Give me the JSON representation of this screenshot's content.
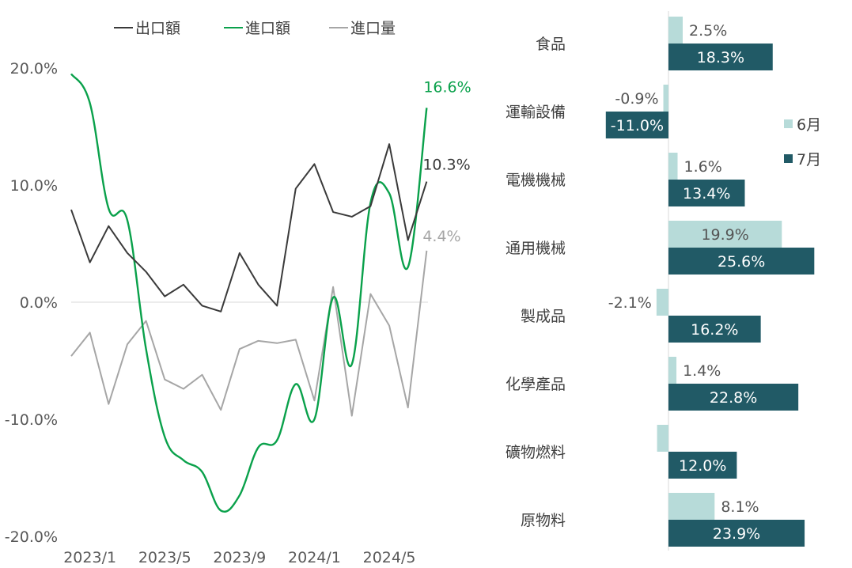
{
  "colors": {
    "export": "#3a3a3a",
    "import": "#0aa14b",
    "import_volume": "#a6a6a6",
    "june": "#b7dbd9",
    "july": "#215a66",
    "axis_text": "#595959",
    "zero_line": "#d9d9d9"
  },
  "chart_data": [
    {
      "type": "line",
      "title": "",
      "xlabel": "",
      "ylabel": "",
      "ylim": [
        -20,
        20
      ],
      "yticks": [
        20,
        10,
        0,
        -10,
        -20
      ],
      "ytick_labels": [
        "20.0%",
        "10.0%",
        "0.0%",
        "-10.0%",
        "-20.0%"
      ],
      "x_tick_labels": [
        "2023/1",
        "2023/5",
        "2023/9",
        "2024/1",
        "2024/5"
      ],
      "x": [
        "2022/12",
        "2023/1",
        "2023/2",
        "2023/3",
        "2023/4",
        "2023/5",
        "2023/6",
        "2023/7",
        "2023/8",
        "2023/9",
        "2023/10",
        "2023/11",
        "2023/12",
        "2024/1",
        "2024/2",
        "2024/3",
        "2024/4",
        "2024/5",
        "2024/6",
        "2024/7"
      ],
      "legend_position": "top",
      "grid": false,
      "series": [
        {
          "name": "出口額",
          "color_key": "export",
          "smooth": false,
          "end_label": "10.3%",
          "values": [
            7.9,
            3.4,
            6.5,
            4.2,
            2.6,
            0.5,
            1.5,
            -0.3,
            -0.8,
            4.2,
            1.5,
            -0.3,
            9.7,
            11.8,
            7.7,
            7.3,
            8.2,
            13.5,
            5.3,
            10.3
          ]
        },
        {
          "name": "進口額",
          "color_key": "import",
          "smooth": true,
          "end_label": "16.6%",
          "values": [
            19.5,
            17.0,
            8.0,
            7.0,
            -4.0,
            -11.5,
            -13.5,
            -14.5,
            -17.8,
            -16.5,
            -12.4,
            -11.8,
            -7.0,
            -10.0,
            0.4,
            -5.3,
            8.5,
            9.3,
            3.0,
            16.6
          ]
        },
        {
          "name": "進口量",
          "color_key": "import_volume",
          "smooth": false,
          "end_label": "4.4%",
          "values": [
            -4.6,
            -2.6,
            -8.7,
            -3.6,
            -1.6,
            -6.6,
            -7.4,
            -6.2,
            -9.2,
            -4.0,
            -3.3,
            -3.5,
            -3.2,
            -8.4,
            1.3,
            -9.7,
            0.7,
            -2.0,
            -9.0,
            4.4
          ]
        }
      ]
    },
    {
      "type": "bar",
      "orientation": "horizontal",
      "title": "",
      "categories": [
        "食品",
        "運輸設備",
        "電機機械",
        "通用機械",
        "製成品",
        "化學產品",
        "礦物燃料",
        "原物料"
      ],
      "legend_position": "right",
      "grid": false,
      "series": [
        {
          "name": "6月",
          "color_key": "june",
          "values": [
            2.5,
            -0.9,
            1.6,
            19.9,
            -2.1,
            1.4,
            -2.0,
            8.1
          ],
          "labels": [
            "2.5%",
            "-0.9%",
            "1.6%",
            "19.9%",
            "-2.1%",
            "1.4%",
            "",
            "8.1%"
          ]
        },
        {
          "name": "7月",
          "color_key": "july",
          "values": [
            18.3,
            -11.0,
            13.4,
            25.6,
            16.2,
            22.8,
            12.0,
            23.9
          ],
          "labels": [
            "18.3%",
            "-11.0%",
            "13.4%",
            "25.6%",
            "16.2%",
            "22.8%",
            "12.0%",
            "23.9%"
          ]
        }
      ]
    }
  ]
}
